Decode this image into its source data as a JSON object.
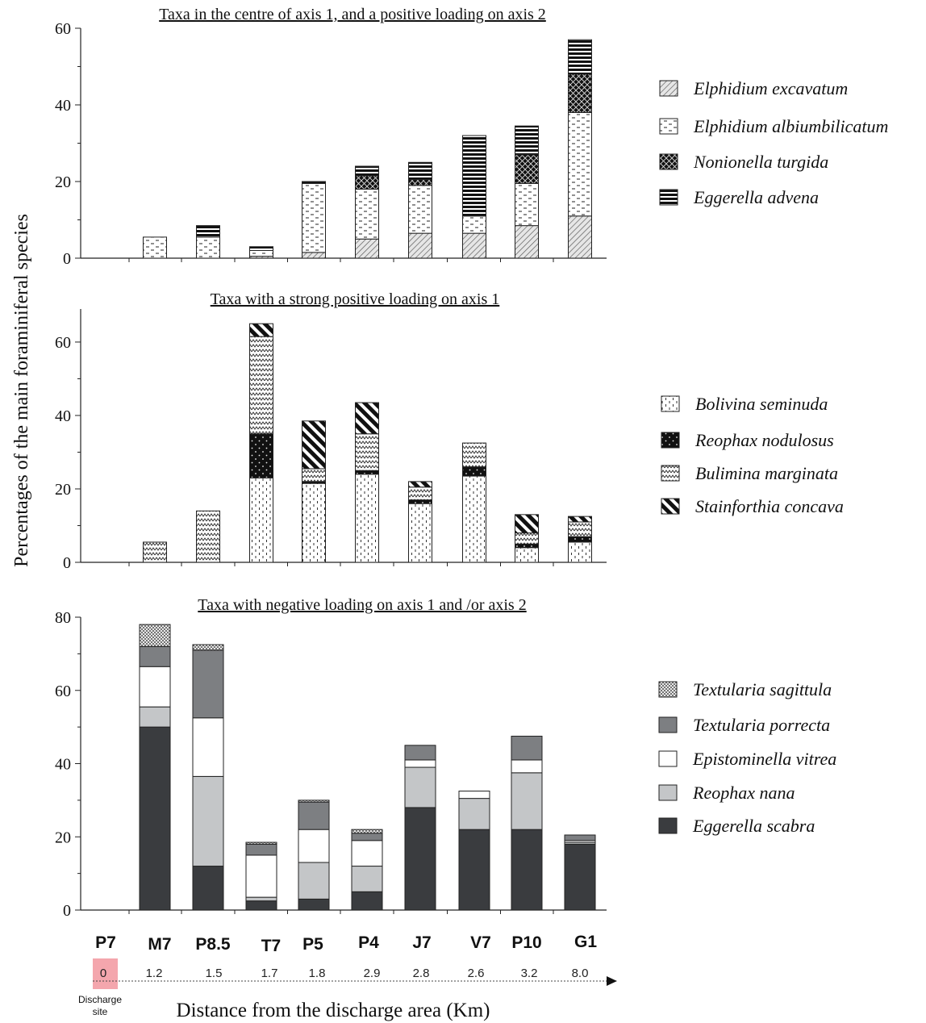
{
  "ylabel": "Percentages of the main foraminiferal species",
  "xlabel": "Distance from the discharge area (Km)",
  "discharge_note": [
    "Discharge",
    "site"
  ],
  "stations": [
    "P7",
    "M7",
    "P8.5",
    "T7",
    "P5",
    "P4",
    "J7",
    "V7",
    "P10",
    "G1"
  ],
  "distances": [
    "0",
    "1.2",
    "1.5",
    "1.7",
    "1.8",
    "2.9",
    "2.8",
    "2.6",
    "3.2",
    "8.0"
  ],
  "colors": {
    "discharge_highlight": "#f4a6ad",
    "dark": "#3a3c3f",
    "mid": "#7d7f82",
    "light": "#c4c6c8"
  },
  "chart_data": [
    {
      "type": "bar",
      "stacked": true,
      "title": "Taxa in the centre of axis 1, and a positive loading on axis 2",
      "categories": [
        "P7",
        "M7",
        "P8.5",
        "T7",
        "P5",
        "P4",
        "J7",
        "V7",
        "P10",
        "G1"
      ],
      "ylim": [
        0,
        60
      ],
      "yticks": [
        "0",
        "20",
        "40",
        "60"
      ],
      "series": [
        {
          "name": "Elphidium excavatum",
          "pattern": "diag-hatch",
          "values": [
            0,
            0,
            0,
            0.5,
            1.5,
            5,
            6.5,
            6.5,
            8.5,
            11
          ]
        },
        {
          "name": "Elphidium  albiumbilicatum",
          "pattern": "dashes",
          "values": [
            0,
            5.5,
            5.5,
            1.5,
            18,
            13,
            12.5,
            4.5,
            11,
            27
          ]
        },
        {
          "name": "Nonionella turgida",
          "pattern": "crosshatch-dark",
          "values": [
            0,
            0,
            0,
            0,
            0,
            3.5,
            1.5,
            0,
            7.5,
            10
          ]
        },
        {
          "name": "Eggerella advena",
          "pattern": "horizontal-lines",
          "values": [
            0,
            0,
            3,
            1,
            0.5,
            2.5,
            4.5,
            21,
            7.5,
            9
          ]
        }
      ]
    },
    {
      "type": "bar",
      "stacked": true,
      "title": "Taxa with a strong positive loading on axis 1",
      "categories": [
        "P7",
        "M7",
        "P8.5",
        "T7",
        "P5",
        "P4",
        "J7",
        "V7",
        "P10",
        "G1"
      ],
      "ylim": [
        0,
        69
      ],
      "yticks": [
        "0",
        "20",
        "40",
        "60"
      ],
      "series": [
        {
          "name": "Bolivina seminuda",
          "pattern": "dotted",
          "values": [
            0,
            0,
            0,
            23,
            21.5,
            24,
            16,
            23.5,
            4,
            5.5
          ]
        },
        {
          "name": "Reophax nodulosus",
          "pattern": "black-dots",
          "values": [
            0,
            0,
            0,
            12,
            0.5,
            1,
            1,
            2.5,
            1,
            1.5
          ]
        },
        {
          "name": "Bulimina marginata",
          "pattern": "zigzag",
          "values": [
            0,
            5.5,
            14,
            26.5,
            3.5,
            10,
            3.5,
            6.5,
            3,
            4
          ]
        },
        {
          "name": "Stainforthia concava",
          "pattern": "thick-diag",
          "values": [
            0,
            0,
            0,
            3.5,
            13,
            8.5,
            1.5,
            0,
            5,
            1.5
          ]
        }
      ]
    },
    {
      "type": "bar",
      "stacked": true,
      "title": "Taxa with negative loading on axis 1 and /or axis 2",
      "categories": [
        "P7",
        "M7",
        "P8.5",
        "T7",
        "P5",
        "P4",
        "J7",
        "V7",
        "P10",
        "G1"
      ],
      "ylim": [
        0,
        80
      ],
      "yticks": [
        "0",
        "20",
        "40",
        "60",
        "80"
      ],
      "series": [
        {
          "name": "Eggerella scabra",
          "pattern": "solid-dark",
          "values": [
            0,
            50,
            12,
            2.5,
            3,
            5,
            28,
            22,
            22,
            18
          ]
        },
        {
          "name": "Reophax nana",
          "pattern": "solid-light",
          "values": [
            0,
            5.5,
            24.5,
            1,
            10,
            7,
            11,
            8.5,
            15.5,
            0.5
          ]
        },
        {
          "name": "Epistominella vitrea",
          "pattern": "solid-white",
          "values": [
            0,
            11,
            16,
            11.5,
            9,
            7,
            2,
            2,
            3.5,
            0.5
          ]
        },
        {
          "name": "Textularia porrecta",
          "pattern": "solid-mid",
          "values": [
            0,
            5.5,
            18.5,
            3,
            7.5,
            2,
            4,
            0,
            6.5,
            1.5
          ]
        },
        {
          "name": "Textularia sagittula",
          "pattern": "fine-crosshatch",
          "values": [
            0,
            6,
            1.5,
            0.5,
            0.5,
            1,
            0,
            0,
            0,
            0
          ]
        }
      ]
    }
  ]
}
